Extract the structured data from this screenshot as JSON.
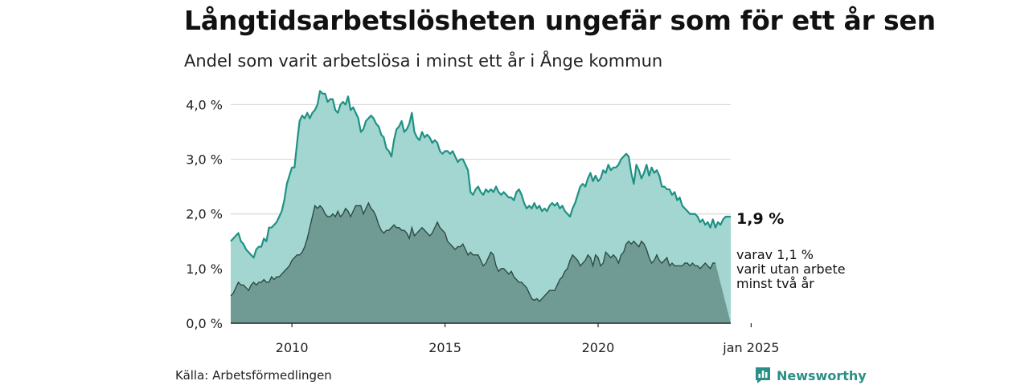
{
  "header": {
    "title": "Långtidsarbetslösheten ungefär som för ett år sen",
    "subtitle": "Andel som varit arbetslösa i minst ett år i Ånge kommun"
  },
  "footer": {
    "source": "Källa: Arbetsförmedlingen",
    "brand": "Newsworthy"
  },
  "colors": {
    "upper_line": "#1f9184",
    "upper_fill": "#a3d6d0",
    "lower_fill": "#709b94",
    "lower_line": "#2e4b46",
    "grid": "#d9d9d9",
    "brand": "#2a8f85"
  },
  "icons": {
    "brand_logo": "bar-chart-bubble-icon"
  },
  "chart_data": {
    "type": "area",
    "x_start": "2008-01",
    "x_step": "month",
    "ylim": [
      0,
      4.3
    ],
    "yticks": [
      0,
      1,
      2,
      3,
      4
    ],
    "ytick_labels": [
      "0,0 %",
      "1,0 %",
      "2,0 %",
      "3,0 %",
      "4,0 %"
    ],
    "xticks": [
      {
        "label": "2010",
        "index": 24
      },
      {
        "label": "2015",
        "index": 84
      },
      {
        "label": "2020",
        "index": 144
      },
      {
        "label": "jan 2025",
        "index": 204
      }
    ],
    "end_labels": {
      "main": "1,9 %",
      "sub": [
        "varav 1,1 %",
        "varit utan arbete",
        "minst två år"
      ]
    },
    "series": [
      {
        "name": "minst ett år",
        "values": [
          1.5,
          1.55,
          1.6,
          1.65,
          1.5,
          1.45,
          1.35,
          1.3,
          1.25,
          1.2,
          1.35,
          1.4,
          1.4,
          1.55,
          1.5,
          1.75,
          1.75,
          1.8,
          1.85,
          1.95,
          2.05,
          2.25,
          2.55,
          2.7,
          2.85,
          2.85,
          3.3,
          3.7,
          3.8,
          3.75,
          3.85,
          3.75,
          3.85,
          3.9,
          4.0,
          4.25,
          4.2,
          4.2,
          4.05,
          4.1,
          4.1,
          3.9,
          3.85,
          4.0,
          4.05,
          4.0,
          4.15,
          3.9,
          3.95,
          3.85,
          3.75,
          3.5,
          3.55,
          3.7,
          3.75,
          3.8,
          3.75,
          3.65,
          3.6,
          3.45,
          3.4,
          3.2,
          3.15,
          3.05,
          3.35,
          3.55,
          3.6,
          3.7,
          3.5,
          3.55,
          3.65,
          3.85,
          3.5,
          3.4,
          3.35,
          3.5,
          3.4,
          3.45,
          3.4,
          3.3,
          3.35,
          3.3,
          3.15,
          3.1,
          3.15,
          3.15,
          3.1,
          3.15,
          3.05,
          2.95,
          3.0,
          3.0,
          2.9,
          2.8,
          2.4,
          2.35,
          2.45,
          2.5,
          2.4,
          2.35,
          2.45,
          2.4,
          2.45,
          2.4,
          2.5,
          2.4,
          2.35,
          2.4,
          2.35,
          2.3,
          2.3,
          2.25,
          2.4,
          2.45,
          2.35,
          2.2,
          2.1,
          2.15,
          2.1,
          2.2,
          2.1,
          2.15,
          2.05,
          2.1,
          2.05,
          2.15,
          2.2,
          2.15,
          2.2,
          2.1,
          2.15,
          2.05,
          2.0,
          1.95,
          2.1,
          2.2,
          2.35,
          2.5,
          2.55,
          2.5,
          2.65,
          2.75,
          2.6,
          2.7,
          2.6,
          2.65,
          2.8,
          2.75,
          2.9,
          2.8,
          2.85,
          2.85,
          2.9,
          3.0,
          3.05,
          3.1,
          3.05,
          2.75,
          2.55,
          2.9,
          2.8,
          2.65,
          2.75,
          2.9,
          2.7,
          2.85,
          2.75,
          2.8,
          2.7,
          2.5,
          2.5,
          2.45,
          2.45,
          2.35,
          2.4,
          2.25,
          2.3,
          2.15,
          2.1,
          2.05,
          2.0,
          2.0,
          2.0,
          1.95,
          1.85,
          1.9,
          1.8,
          1.85,
          1.75,
          1.9,
          1.75,
          1.85,
          1.8,
          1.9,
          1.95,
          1.95,
          1.95
        ]
      },
      {
        "name": "minst två år",
        "values": [
          0.5,
          0.55,
          0.65,
          0.75,
          0.7,
          0.7,
          0.65,
          0.6,
          0.7,
          0.75,
          0.7,
          0.75,
          0.75,
          0.8,
          0.75,
          0.75,
          0.85,
          0.8,
          0.85,
          0.85,
          0.9,
          0.95,
          1.0,
          1.05,
          1.15,
          1.2,
          1.25,
          1.25,
          1.3,
          1.4,
          1.55,
          1.75,
          1.95,
          2.15,
          2.1,
          2.15,
          2.1,
          2.0,
          1.95,
          1.95,
          2.0,
          1.95,
          2.05,
          1.95,
          2.0,
          2.1,
          2.05,
          1.95,
          2.05,
          2.15,
          2.15,
          2.15,
          2.0,
          2.1,
          2.2,
          2.1,
          2.05,
          1.95,
          1.8,
          1.7,
          1.65,
          1.7,
          1.7,
          1.75,
          1.8,
          1.75,
          1.75,
          1.7,
          1.7,
          1.65,
          1.55,
          1.75,
          1.6,
          1.65,
          1.7,
          1.75,
          1.7,
          1.65,
          1.6,
          1.65,
          1.75,
          1.85,
          1.75,
          1.7,
          1.65,
          1.5,
          1.45,
          1.4,
          1.35,
          1.4,
          1.4,
          1.45,
          1.35,
          1.25,
          1.3,
          1.25,
          1.25,
          1.25,
          1.15,
          1.05,
          1.1,
          1.2,
          1.3,
          1.25,
          1.05,
          0.95,
          1.0,
          1.0,
          0.95,
          0.9,
          0.95,
          0.85,
          0.8,
          0.75,
          0.75,
          0.7,
          0.65,
          0.55,
          0.45,
          0.42,
          0.45,
          0.4,
          0.45,
          0.5,
          0.55,
          0.6,
          0.6,
          0.6,
          0.7,
          0.8,
          0.85,
          0.95,
          1.0,
          1.15,
          1.25,
          1.2,
          1.15,
          1.05,
          1.1,
          1.15,
          1.25,
          1.2,
          1.05,
          1.25,
          1.2,
          1.05,
          1.1,
          1.3,
          1.25,
          1.2,
          1.25,
          1.2,
          1.1,
          1.25,
          1.3,
          1.45,
          1.5,
          1.45,
          1.5,
          1.45,
          1.4,
          1.5,
          1.45,
          1.35,
          1.2,
          1.1,
          1.15,
          1.25,
          1.15,
          1.1,
          1.15,
          1.2,
          1.05,
          1.1,
          1.05,
          1.05,
          1.05,
          1.05,
          1.1,
          1.1,
          1.05,
          1.1,
          1.05,
          1.05,
          1.0,
          1.05,
          1.1,
          1.05,
          1.0,
          1.1,
          1.1
        ]
      }
    ]
  }
}
